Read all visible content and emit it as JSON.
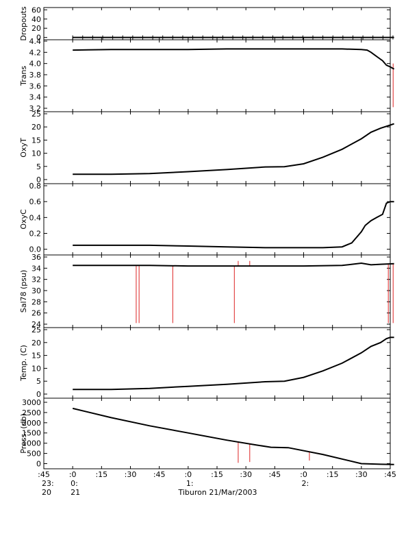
{
  "chart_data": {
    "type": "line",
    "title": "",
    "xlabel": "Tiburon 21/Mar/2003",
    "x_range_minutes": [
      -15,
      165
    ],
    "x_ticks": [
      {
        "t": -15,
        "label": ":45",
        "hour": "23:",
        "day": "20"
      },
      {
        "t": 0,
        "label": ":0",
        "hour": "0:",
        "day": "21"
      },
      {
        "t": 15,
        "label": ":15",
        "hour": "",
        "day": ""
      },
      {
        "t": 30,
        "label": ":30",
        "hour": "",
        "day": ""
      },
      {
        "t": 45,
        "label": ":45",
        "hour": "",
        "day": ""
      },
      {
        "t": 60,
        "label": ":0",
        "hour": "1:",
        "day": ""
      },
      {
        "t": 75,
        "label": ":15",
        "hour": "",
        "day": ""
      },
      {
        "t": 90,
        "label": ":30",
        "hour": "",
        "day": ""
      },
      {
        "t": 105,
        "label": ":45",
        "hour": "",
        "day": ""
      },
      {
        "t": 120,
        "label": ":0",
        "hour": "2:",
        "day": ""
      },
      {
        "t": 135,
        "label": ":15",
        "hour": "",
        "day": ""
      },
      {
        "t": 150,
        "label": ":30",
        "hour": "",
        "day": ""
      },
      {
        "t": 165,
        "label": ":45",
        "hour": "",
        "day": ""
      }
    ],
    "panels": [
      {
        "ylabel": "Dropouts",
        "ylim": [
          -5,
          65
        ],
        "ticks": [
          {
            "v": 0,
            "label": "0"
          },
          {
            "v": 20,
            "label": "20"
          },
          {
            "v": 40,
            "label": "40"
          },
          {
            "v": 60,
            "label": "60"
          }
        ],
        "series": [
          {
            "x": [
              0,
              167
            ],
            "y": [
              0,
              0
            ]
          }
        ],
        "markers": true,
        "spikes": []
      },
      {
        "ylabel": "Trans",
        "ylim": [
          3.2,
          4.4
        ],
        "ticks": [
          {
            "v": 3.2,
            "label": "3.2"
          },
          {
            "v": 3.4,
            "label": "3.4"
          },
          {
            "v": 3.6,
            "label": "3.6"
          },
          {
            "v": 3.8,
            "label": "3.8"
          },
          {
            "v": 4.0,
            "label": "4.0"
          },
          {
            "v": 4.2,
            "label": "4.2"
          },
          {
            "v": 4.4,
            "label": "4.4"
          }
        ],
        "series": [
          {
            "x": [
              0,
              20,
              40,
              60,
              80,
              100,
              120,
              140,
              150,
              153,
              155,
              157,
              159,
              161,
              163,
              165,
              167
            ],
            "y": [
              4.24,
              4.25,
              4.25,
              4.25,
              4.26,
              4.26,
              4.26,
              4.26,
              4.25,
              4.24,
              4.2,
              4.15,
              4.1,
              4.05,
              3.97,
              3.94,
              3.9
            ]
          }
        ],
        "spikes": [
          {
            "t": 166.5,
            "from": 4.0,
            "to": 3.22
          }
        ]
      },
      {
        "ylabel": "OxyT",
        "ylim": [
          0,
          25
        ],
        "ticks": [
          {
            "v": 0,
            "label": "0"
          },
          {
            "v": 5,
            "label": "5"
          },
          {
            "v": 10,
            "label": "10"
          },
          {
            "v": 15,
            "label": "15"
          },
          {
            "v": 20,
            "label": "20"
          },
          {
            "v": 25,
            "label": "25"
          }
        ],
        "series": [
          {
            "x": [
              0,
              20,
              40,
              60,
              80,
              100,
              110,
              120,
              130,
              140,
              150,
              155,
              160,
              165,
              167
            ],
            "y": [
              2.0,
              2.0,
              2.3,
              3.0,
              3.8,
              4.8,
              4.9,
              6.0,
              8.5,
              11.5,
              15.5,
              18.0,
              19.5,
              20.7,
              21.2
            ]
          }
        ],
        "spikes": []
      },
      {
        "ylabel": "OxyC",
        "ylim": [
          -0.02,
          0.8
        ],
        "ticks": [
          {
            "v": 0.0,
            "label": "0.0"
          },
          {
            "v": 0.2,
            "label": "0.2"
          },
          {
            "v": 0.4,
            "label": "0.4"
          },
          {
            "v": 0.6,
            "label": "0.6"
          },
          {
            "v": 0.8,
            "label": "0.8"
          }
        ],
        "series": [
          {
            "x": [
              0,
              20,
              40,
              60,
              80,
              100,
              110,
              120,
              130,
              140,
              145,
              150,
              152,
              155,
              158,
              161,
              163,
              165,
              167
            ],
            "y": [
              0.05,
              0.05,
              0.05,
              0.04,
              0.03,
              0.02,
              0.02,
              0.02,
              0.02,
              0.03,
              0.08,
              0.22,
              0.3,
              0.36,
              0.4,
              0.44,
              0.58,
              0.6,
              0.6
            ]
          }
        ],
        "spikes": []
      },
      {
        "ylabel": "Sal78 (psu)",
        "ylim": [
          24,
          36
        ],
        "ticks": [
          {
            "v": 24,
            "label": "24"
          },
          {
            "v": 26,
            "label": "26"
          },
          {
            "v": 28,
            "label": "28"
          },
          {
            "v": 30,
            "label": "30"
          },
          {
            "v": 32,
            "label": "32"
          },
          {
            "v": 34,
            "label": "34"
          },
          {
            "v": 36,
            "label": "36"
          }
        ],
        "series": [
          {
            "x": [
              0,
              20,
              40,
              60,
              80,
              100,
              120,
              140,
              150,
              155,
              160,
              167
            ],
            "y": [
              34.5,
              34.5,
              34.5,
              34.4,
              34.4,
              34.4,
              34.4,
              34.5,
              34.9,
              34.6,
              34.7,
              34.8
            ]
          }
        ],
        "spikes": [
          {
            "t": 33,
            "from": 34.4,
            "to": 24.2
          },
          {
            "t": 34.5,
            "from": 34.4,
            "to": 24.2
          },
          {
            "t": 52,
            "from": 34.4,
            "to": 24.2
          },
          {
            "t": 84,
            "from": 34.4,
            "to": 24.2
          },
          {
            "t": 86,
            "from": 34.4,
            "to": 35.3
          },
          {
            "t": 92,
            "from": 34.4,
            "to": 35.3
          },
          {
            "t": 164,
            "from": 34.8,
            "to": 24.2
          },
          {
            "t": 166.5,
            "from": 34.8,
            "to": 24.2
          }
        ]
      },
      {
        "ylabel": "Temp. (C)",
        "ylim": [
          0,
          25
        ],
        "ticks": [
          {
            "v": 0,
            "label": "0"
          },
          {
            "v": 5,
            "label": "5"
          },
          {
            "v": 10,
            "label": "10"
          },
          {
            "v": 15,
            "label": "15"
          },
          {
            "v": 20,
            "label": "20"
          },
          {
            "v": 25,
            "label": "25"
          }
        ],
        "series": [
          {
            "x": [
              0,
              20,
              40,
              60,
              80,
              100,
              110,
              120,
              130,
              140,
              150,
              155,
              160,
              163,
              165,
              167
            ],
            "y": [
              1.8,
              1.8,
              2.2,
              3.0,
              3.8,
              4.8,
              5.0,
              6.5,
              9.0,
              12.0,
              16.0,
              18.5,
              20.0,
              21.5,
              22.0,
              22.0
            ]
          }
        ],
        "spikes": []
      },
      {
        "ylabel": "Press. (db)",
        "ylim": [
          -50,
          3100
        ],
        "ticks": [
          {
            "v": 0,
            "label": "0"
          },
          {
            "v": 500,
            "label": "500"
          },
          {
            "v": 1000,
            "label": "1000"
          },
          {
            "v": 1500,
            "label": "1500"
          },
          {
            "v": 2000,
            "label": "2000"
          },
          {
            "v": 2500,
            "label": "2500"
          },
          {
            "v": 3000,
            "label": "3000"
          }
        ],
        "series": [
          {
            "x": [
              0,
              20,
              40,
              60,
              80,
              95,
              103,
              112,
              130,
              150,
              160,
              167
            ],
            "y": [
              2700,
              2250,
              1850,
              1500,
              1150,
              920,
              800,
              780,
              450,
              0,
              -30,
              -40
            ]
          }
        ],
        "spikes": [
          {
            "t": 86,
            "from": 1050,
            "to": 40
          },
          {
            "t": 92,
            "from": 980,
            "to": 80
          },
          {
            "t": 123,
            "from": 600,
            "to": 150
          }
        ]
      }
    ]
  }
}
